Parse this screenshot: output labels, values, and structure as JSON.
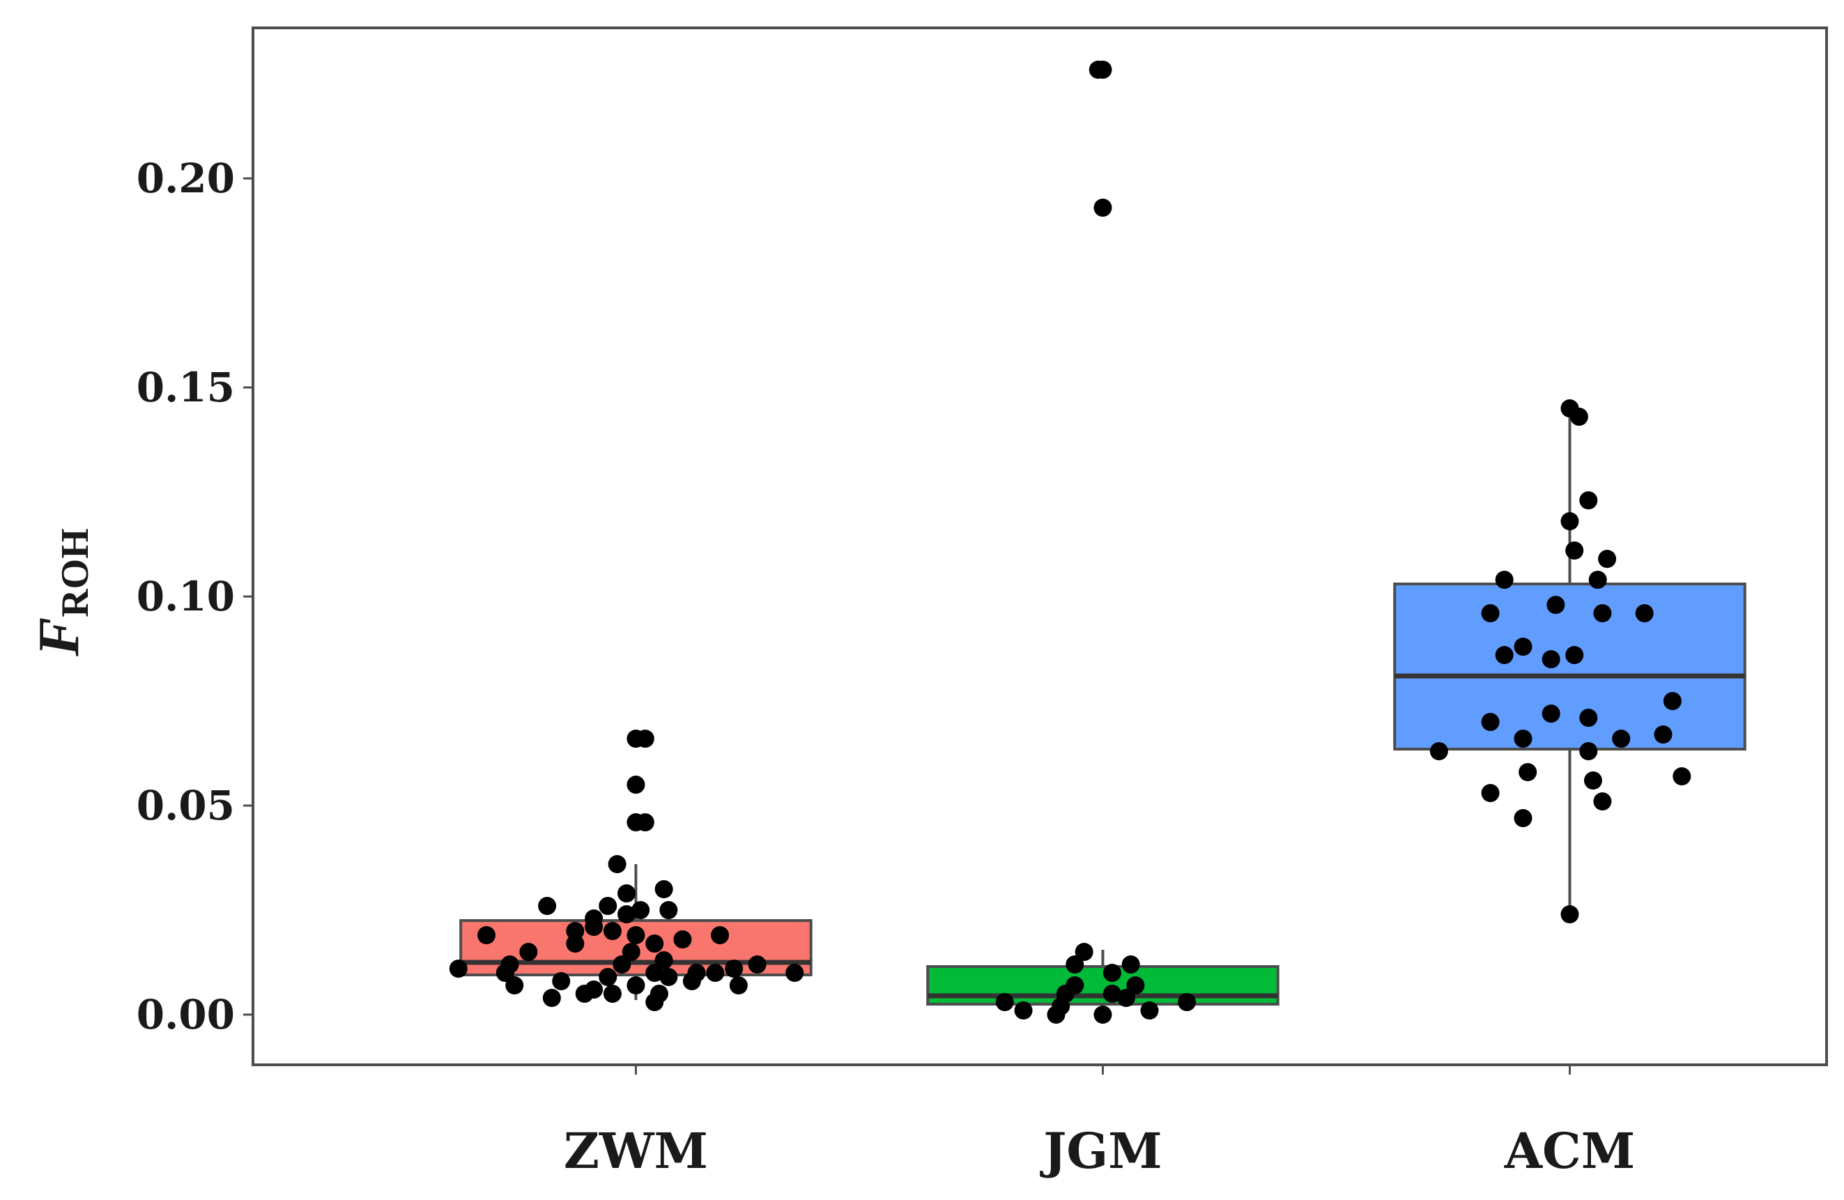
{
  "chart_data": {
    "type": "boxplot",
    "title": "",
    "xlabel": "",
    "ylabel_main": "F",
    "ylabel_sub": "ROH",
    "ylim": [
      -0.012,
      0.236
    ],
    "yticks": [
      0.0,
      0.05,
      0.1,
      0.15,
      0.2
    ],
    "ytick_labels": [
      "0.00",
      "0.05",
      "0.10",
      "0.15",
      "0.20"
    ],
    "grid": false,
    "categories": [
      "ZWM",
      "JGM",
      "ACM"
    ],
    "colors": {
      "ZWM": "#f8766d",
      "JGM": "#00ba38",
      "ACM": "#619cff",
      "frame": "#4d4d4d",
      "point": "#000000"
    },
    "boxes": [
      {
        "category": "ZWM",
        "q1": 0.0095,
        "median": 0.0125,
        "q3": 0.0225,
        "whisker_low": 0.0035,
        "whisker_high": 0.036
      },
      {
        "category": "JGM",
        "q1": 0.0025,
        "median": 0.0045,
        "q3": 0.0115,
        "whisker_low": 0.0005,
        "whisker_high": 0.0155
      },
      {
        "category": "ACM",
        "q1": 0.0635,
        "median": 0.081,
        "q3": 0.103,
        "whisker_low": 0.024,
        "whisker_high": 0.145
      }
    ],
    "points": [
      {
        "category": "ZWM",
        "jitter": [
          0.0,
          0.02,
          0.0,
          0.02,
          0.0,
          -0.04,
          -0.02,
          -0.06,
          -0.09,
          0.06,
          -0.02,
          0.01,
          -0.19,
          -0.09,
          0.07,
          -0.05,
          0.0,
          0.04,
          -0.13,
          0.1,
          -0.32,
          0.18,
          -0.13,
          -0.23,
          -0.01,
          0.06,
          0.26,
          -0.38,
          -0.27,
          0.21,
          -0.03,
          0.04,
          0.13,
          0.17,
          -0.06,
          0.07,
          -0.28,
          0.34,
          -0.16,
          0.0,
          -0.26,
          0.22,
          0.12,
          -0.09,
          0.05,
          -0.05,
          -0.11,
          0.04,
          -0.18
        ],
        "values": [
          0.066,
          0.066,
          0.055,
          0.046,
          0.046,
          0.036,
          0.029,
          0.026,
          0.023,
          0.03,
          0.024,
          0.025,
          0.026,
          0.021,
          0.025,
          0.02,
          0.019,
          0.017,
          0.02,
          0.018,
          0.019,
          0.019,
          0.017,
          0.015,
          0.015,
          0.013,
          0.012,
          0.011,
          0.012,
          0.011,
          0.012,
          0.01,
          0.01,
          0.01,
          0.009,
          0.009,
          0.01,
          0.01,
          0.008,
          0.007,
          0.007,
          0.007,
          0.008,
          0.006,
          0.005,
          0.005,
          0.005,
          0.003,
          0.004
        ]
      },
      {
        "category": "JGM",
        "jitter": [
          -0.01,
          0.0,
          0.0,
          -0.04,
          -0.06,
          0.06,
          0.02,
          0.07,
          0.02,
          0.05,
          -0.06,
          -0.08,
          0.18,
          -0.21,
          -0.17,
          0.1,
          -0.09,
          0.0,
          -0.1
        ],
        "values": [
          0.226,
          0.226,
          0.193,
          0.015,
          0.012,
          0.012,
          0.01,
          0.007,
          0.005,
          0.004,
          0.007,
          0.005,
          0.003,
          0.003,
          0.001,
          0.001,
          0.002,
          0.0,
          0.0
        ]
      },
      {
        "category": "ACM",
        "jitter": [
          0.0,
          0.02,
          0.04,
          0.0,
          0.08,
          0.01,
          -0.14,
          0.06,
          -0.03,
          0.16,
          0.07,
          -0.17,
          -0.1,
          -0.14,
          0.01,
          -0.04,
          0.22,
          -0.17,
          -0.04,
          0.04,
          -0.1,
          0.11,
          0.2,
          -0.28,
          0.04,
          0.24,
          -0.09,
          0.05,
          -0.17,
          0.07,
          -0.1,
          0.0
        ],
        "values": [
          0.145,
          0.143,
          0.123,
          0.118,
          0.109,
          0.111,
          0.104,
          0.104,
          0.098,
          0.096,
          0.096,
          0.096,
          0.088,
          0.086,
          0.086,
          0.085,
          0.075,
          0.07,
          0.072,
          0.071,
          0.066,
          0.066,
          0.067,
          0.063,
          0.063,
          0.057,
          0.058,
          0.056,
          0.053,
          0.051,
          0.047,
          0.024
        ]
      }
    ]
  }
}
